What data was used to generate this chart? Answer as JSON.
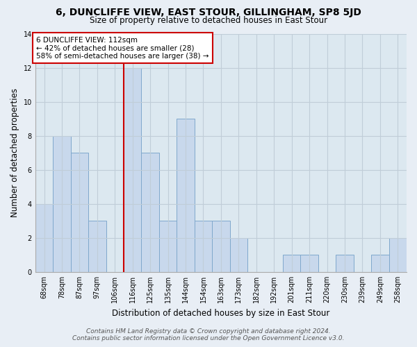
{
  "title": "6, DUNCLIFFE VIEW, EAST STOUR, GILLINGHAM, SP8 5JD",
  "subtitle": "Size of property relative to detached houses in East Stour",
  "xlabel": "Distribution of detached houses by size in East Stour",
  "ylabel": "Number of detached properties",
  "bar_labels": [
    "68sqm",
    "78sqm",
    "87sqm",
    "97sqm",
    "106sqm",
    "116sqm",
    "125sqm",
    "135sqm",
    "144sqm",
    "154sqm",
    "163sqm",
    "173sqm",
    "182sqm",
    "192sqm",
    "201sqm",
    "211sqm",
    "220sqm",
    "230sqm",
    "239sqm",
    "249sqm",
    "258sqm"
  ],
  "bar_values": [
    4,
    8,
    7,
    3,
    0,
    12,
    7,
    3,
    9,
    3,
    3,
    2,
    0,
    0,
    1,
    1,
    0,
    1,
    0,
    1,
    2
  ],
  "bar_color": "#c8d8ec",
  "bar_edge_color": "#7fa8cc",
  "marker_bin_index": 5,
  "marker_color": "#cc0000",
  "annotation_lines": [
    "6 DUNCLIFFE VIEW: 112sqm",
    "← 42% of detached houses are smaller (28)",
    "58% of semi-detached houses are larger (38) →"
  ],
  "annotation_box_color": "#ffffff",
  "annotation_box_edge": "#cc0000",
  "ylim": [
    0,
    14
  ],
  "yticks": [
    0,
    2,
    4,
    6,
    8,
    10,
    12,
    14
  ],
  "footer_line1": "Contains HM Land Registry data © Crown copyright and database right 2024.",
  "footer_line2": "Contains public sector information licensed under the Open Government Licence v3.0.",
  "background_color": "#e8eef5",
  "plot_bg_color": "#dce8f0",
  "grid_color": "#c0cdd8",
  "title_fontsize": 10,
  "subtitle_fontsize": 8.5,
  "axis_label_fontsize": 8.5,
  "tick_fontsize": 7,
  "annotation_fontsize": 7.5,
  "footer_fontsize": 6.5
}
